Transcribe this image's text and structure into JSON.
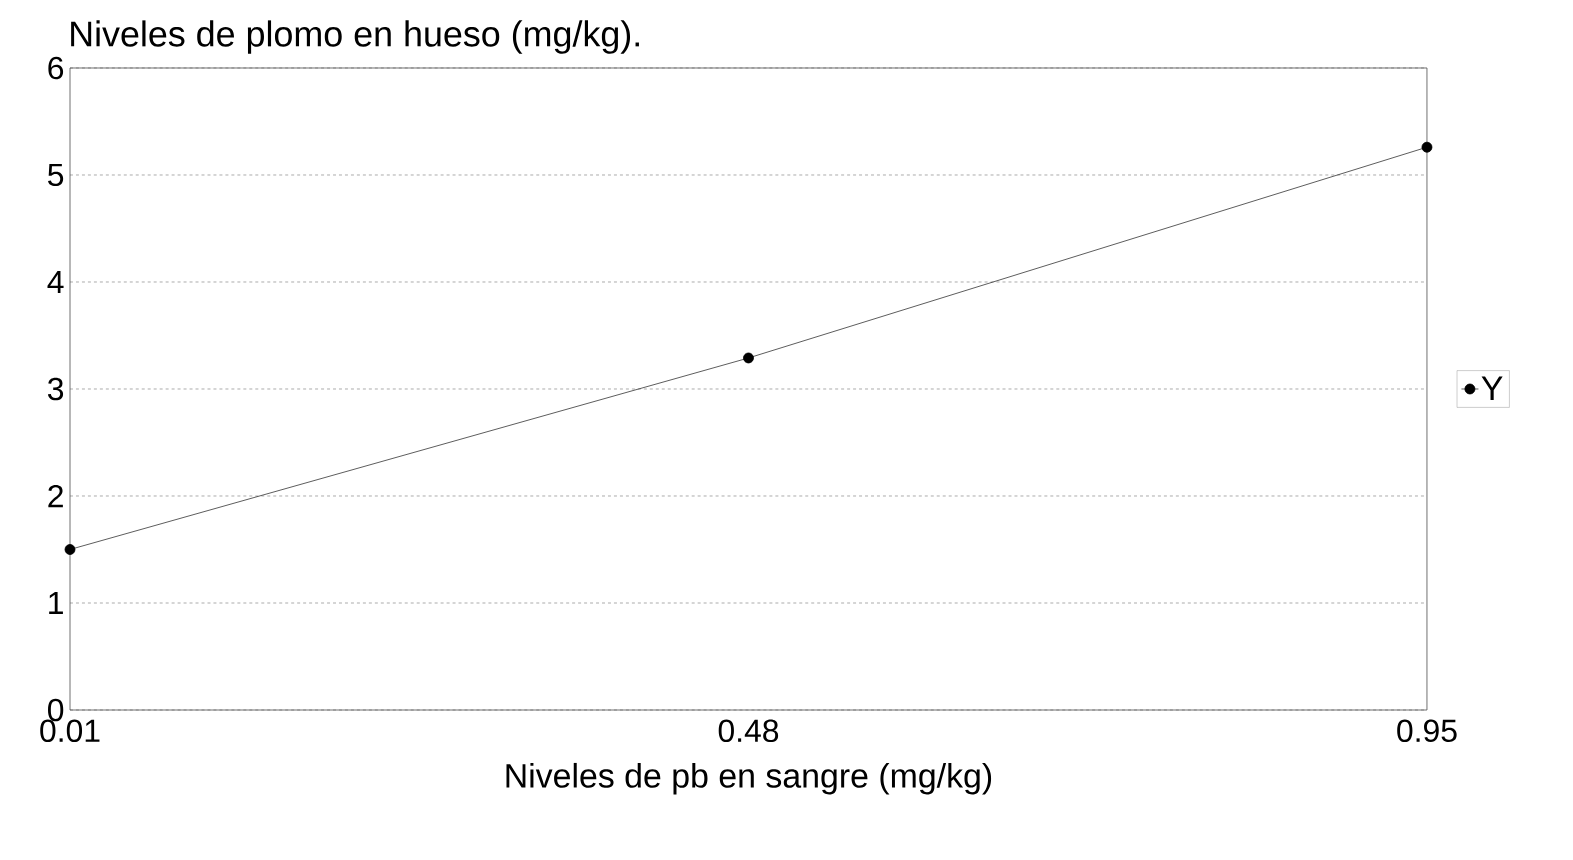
{
  "chart_data": {
    "type": "line",
    "title": "Niveles de plomo en hueso (mg/kg).",
    "xlabel": "Niveles de pb en sangre (mg/kg)",
    "x": [
      0.01,
      0.48,
      0.95
    ],
    "series": [
      {
        "name": "Y",
        "color": "#333333",
        "values": [
          1.5,
          3.29,
          5.26
        ]
      }
    ],
    "xlim": [
      0.01,
      0.95
    ],
    "xticks": [
      0.01,
      0.48,
      0.95
    ],
    "ylim": [
      0,
      6
    ],
    "yticks": [
      0,
      1,
      2,
      3,
      4,
      5,
      6
    ],
    "grid": "y",
    "legend": "right",
    "marker": "circle"
  }
}
